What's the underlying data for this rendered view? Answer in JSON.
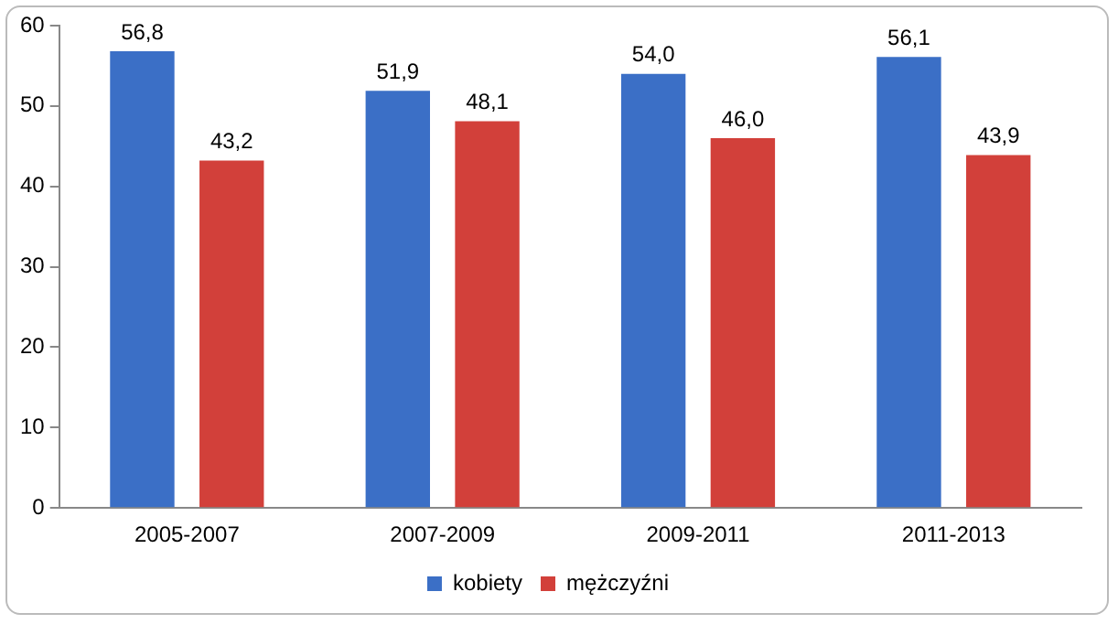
{
  "chart_data": {
    "type": "bar",
    "categories": [
      "2005-2007",
      "2007-2009",
      "2009-2011",
      "2011-2013"
    ],
    "series": [
      {
        "name": "kobiety",
        "color": "#3b6fc6",
        "values": [
          56.8,
          51.9,
          54.0,
          56.1
        ],
        "value_labels": [
          "56,8",
          "51,9",
          "54,0",
          "56,1"
        ]
      },
      {
        "name": "mężczyźni",
        "color": "#d2403a",
        "values": [
          43.2,
          48.1,
          46.0,
          43.9
        ],
        "value_labels": [
          "43,2",
          "48,1",
          "46,0",
          "43,9"
        ]
      }
    ],
    "ylim": [
      0,
      60
    ],
    "yticks": [
      0,
      10,
      20,
      30,
      40,
      50,
      60
    ],
    "grid": false,
    "legend": "bottom"
  }
}
